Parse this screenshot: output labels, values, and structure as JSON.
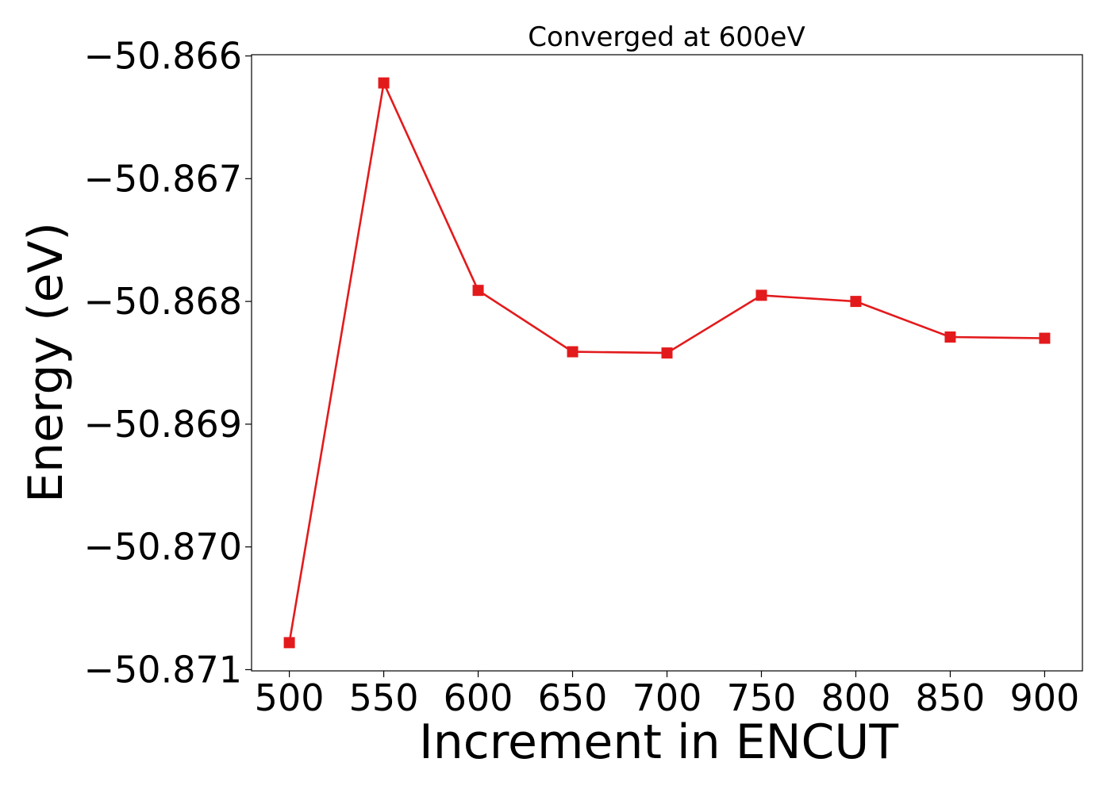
{
  "chart_data": {
    "type": "line",
    "title": "Converged at 600eV",
    "xlabel": "Increment in ENCUT",
    "ylabel": "Energy (eV)",
    "x": [
      500,
      550,
      600,
      650,
      700,
      750,
      800,
      850,
      900
    ],
    "series": [
      {
        "values": [
          -50.87078,
          -50.86622,
          -50.86791,
          -50.86841,
          -50.86842,
          -50.86795,
          -50.868,
          -50.86829,
          -50.8683
        ],
        "color": "#e31a1c",
        "marker": "square"
      }
    ],
    "xticks": [
      500,
      550,
      600,
      650,
      700,
      750,
      800,
      850,
      900
    ],
    "xtick_labels": [
      "500",
      "550",
      "600",
      "650",
      "700",
      "750",
      "800",
      "850",
      "900"
    ],
    "yticks": [
      -50.866,
      -50.867,
      -50.868,
      -50.869,
      -50.87,
      -50.871
    ],
    "ytick_labels": [
      "−50.866",
      "−50.867",
      "−50.868",
      "−50.869",
      "−50.870",
      "−50.871"
    ],
    "xlim": [
      480,
      920
    ],
    "ylim": [
      -50.87101,
      -50.86599
    ],
    "grid": false,
    "legend": "none"
  }
}
